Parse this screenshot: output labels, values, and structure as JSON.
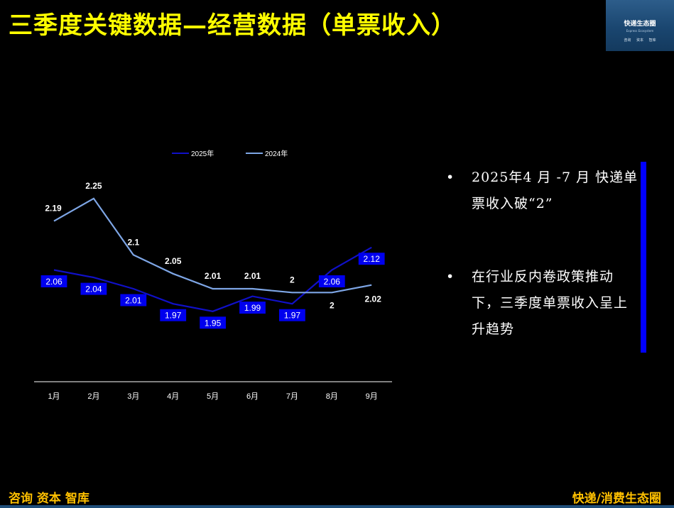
{
  "header": {
    "title": "三季度关键数据—经营数据（单票收入）"
  },
  "logo": {
    "name": "快递生态圈",
    "subtitle": "Express Ecosystem",
    "tags": [
      "咨询",
      "资本",
      "智库"
    ]
  },
  "chart_data": {
    "type": "line",
    "categories": [
      "1月",
      "2月",
      "3月",
      "4月",
      "5月",
      "6月",
      "7月",
      "8月",
      "9月"
    ],
    "series": [
      {
        "name": "2025年",
        "values": [
          2.06,
          2.04,
          2.01,
          1.97,
          1.95,
          1.99,
          1.97,
          2.06,
          2.12
        ],
        "color": "#1010c8",
        "label_style": "boxed"
      },
      {
        "name": "2024年",
        "values": [
          2.19,
          2.25,
          2.1,
          2.05,
          2.01,
          2.01,
          2,
          2,
          2.02
        ],
        "color": "#7ea6e6",
        "label_style": "plain"
      }
    ],
    "labels": {
      "2025年": [
        "2.06",
        "2.04",
        "2.01",
        "1.97",
        "1.95",
        "1.99",
        "1.97",
        "2.06",
        "2.12"
      ],
      "2024年": [
        "2.19",
        "2.25",
        "2.1",
        "2.05",
        "2.01",
        "2.01",
        "2",
        "2",
        "2.02"
      ]
    },
    "legend_position": "top",
    "grid": false,
    "title": "",
    "xlabel": "",
    "ylabel": ""
  },
  "bullets": [
    {
      "symbol": "•",
      "text": "2025年4 月 -7 月 快递单票收入破“2”"
    },
    {
      "symbol": "•",
      "text": "在行业反内卷政策推动下，三季度单票收入呈上升趋势"
    }
  ],
  "footer": {
    "left": "咨询 资本 智库",
    "right": "快递/消费生态圈"
  },
  "colors": {
    "title": "#ffff00",
    "footer": "#ffc000",
    "accent_bar": "#0000ff",
    "background": "#000000"
  }
}
